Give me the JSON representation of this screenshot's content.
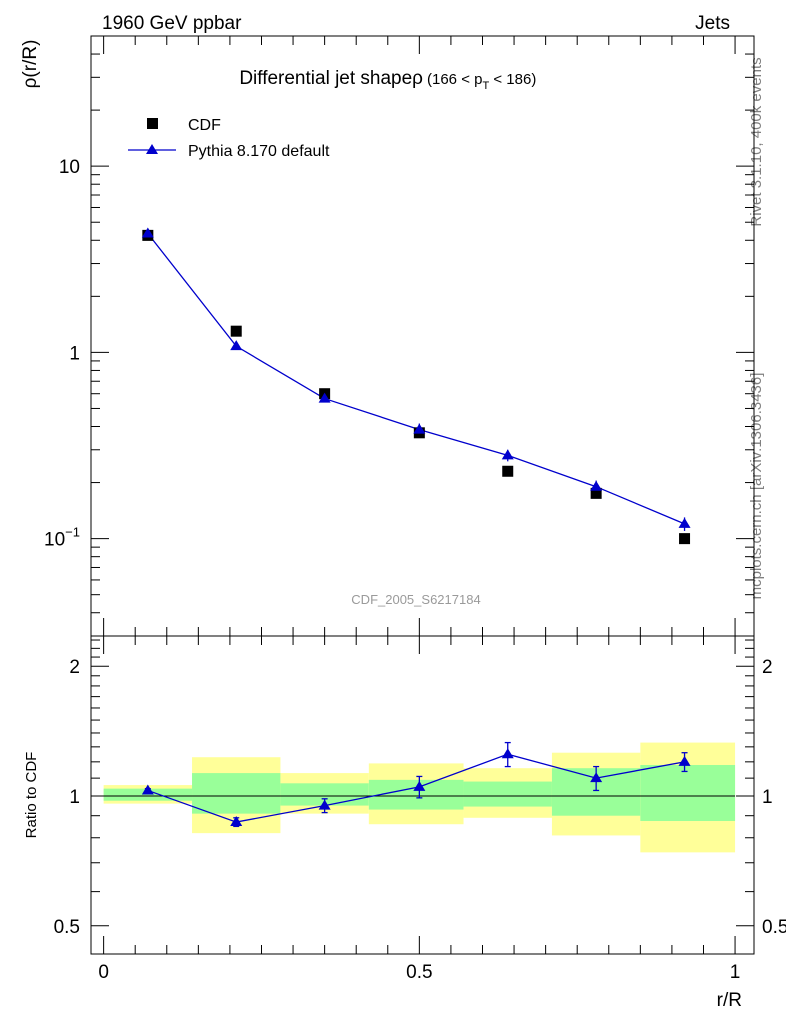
{
  "header": {
    "left": "1960 GeV ppbar",
    "right": "Jets"
  },
  "side_text": {
    "rivet": "Rivet 3.1.10,  400k events",
    "mcplots": "mcplots.cern.ch [arXiv:1306.3436]"
  },
  "chart_data": [
    {
      "type": "scatter",
      "title": "Differential jet shapeρ",
      "subtitle": {
        "prefix": "(166 < p",
        "sub": "T",
        "suffix": " < 186)"
      },
      "ylabel": "ρ(r/R)",
      "yscale": "log",
      "ylim": [
        0.03,
        50
      ],
      "xlim": [
        -0.02,
        1.03
      ],
      "y_ticks": [
        {
          "value": 10,
          "label": "10"
        },
        {
          "value": 1,
          "label": "1"
        },
        {
          "value": 0.1,
          "base": "10",
          "exp": "−1"
        }
      ],
      "watermark": "CDF_2005_S6217184",
      "legend_position": "top-left",
      "legend": [
        {
          "name": "CDF",
          "marker": "square",
          "color": "#000000"
        },
        {
          "name": "Pythia 8.170 default",
          "marker": "triangle",
          "color": "#0000cc"
        }
      ],
      "series": [
        {
          "name": "CDF",
          "x": [
            0.07,
            0.21,
            0.35,
            0.5,
            0.64,
            0.78,
            0.92
          ],
          "y": [
            4.25,
            1.3,
            0.6,
            0.37,
            0.23,
            0.175,
            0.1
          ]
        },
        {
          "name": "Pythia 8.170 default",
          "x": [
            0.07,
            0.21,
            0.35,
            0.5,
            0.64,
            0.78,
            0.92
          ],
          "y": [
            4.35,
            1.08,
            0.565,
            0.385,
            0.28,
            0.19,
            0.12
          ],
          "yerr": [
            0.12,
            0.03,
            0.02,
            0.03,
            0.02,
            0.015,
            0.01
          ]
        }
      ]
    },
    {
      "type": "line",
      "ylabel": "Ratio to CDF",
      "xlabel": "r/R",
      "yscale": "log",
      "ylim": [
        0.43,
        2.35
      ],
      "xlim": [
        -0.02,
        1.03
      ],
      "y_ticks": [
        {
          "value": 2,
          "label": "2"
        },
        {
          "value": 1,
          "label": "1"
        },
        {
          "value": 0.5,
          "label": "0.5"
        }
      ],
      "x_ticks": [
        {
          "value": 0,
          "label": "0"
        },
        {
          "value": 0.5,
          "label": "0.5"
        },
        {
          "value": 1,
          "label": "1"
        }
      ],
      "reference_line": 1,
      "bands": [
        {
          "x0": 0.0,
          "x1": 0.14,
          "yellow": [
            0.96,
            1.06
          ],
          "green": [
            0.975,
            1.04
          ]
        },
        {
          "x0": 0.14,
          "x1": 0.28,
          "yellow": [
            0.82,
            1.23
          ],
          "green": [
            0.91,
            1.13
          ]
        },
        {
          "x0": 0.28,
          "x1": 0.42,
          "yellow": [
            0.91,
            1.13
          ],
          "green": [
            0.95,
            1.07
          ]
        },
        {
          "x0": 0.42,
          "x1": 0.57,
          "yellow": [
            0.86,
            1.19
          ],
          "green": [
            0.93,
            1.09
          ]
        },
        {
          "x0": 0.57,
          "x1": 0.71,
          "yellow": [
            0.89,
            1.16
          ],
          "green": [
            0.945,
            1.08
          ]
        },
        {
          "x0": 0.71,
          "x1": 0.85,
          "yellow": [
            0.81,
            1.26
          ],
          "green": [
            0.9,
            1.16
          ]
        },
        {
          "x0": 0.85,
          "x1": 1.0,
          "yellow": [
            0.74,
            1.33
          ],
          "green": [
            0.875,
            1.18
          ]
        }
      ],
      "series": [
        {
          "name": "Pythia 8.170 default",
          "x": [
            0.07,
            0.21,
            0.35,
            0.5,
            0.64,
            0.78,
            0.92
          ],
          "y": [
            1.03,
            0.87,
            0.95,
            1.05,
            1.25,
            1.1,
            1.2
          ],
          "yerr": [
            0.01,
            0.02,
            0.035,
            0.06,
            0.08,
            0.07,
            0.06
          ]
        }
      ]
    }
  ],
  "colors": {
    "data": "#000000",
    "mc": "#0000cc",
    "band_yellow": "#ffff99",
    "band_green": "#99ff99",
    "watermark": "#9a9a9a",
    "side_text": "#808080"
  }
}
